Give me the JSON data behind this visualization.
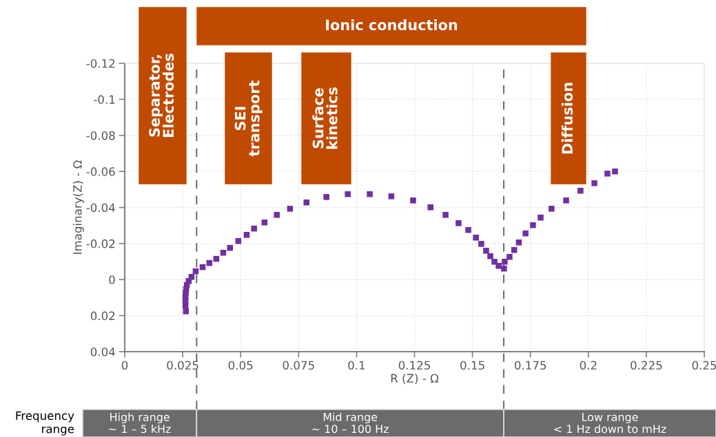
{
  "chart_data": {
    "type": "scatter",
    "xlabel": "R (Z) - Ω",
    "ylabel": "Imaginary(Z) - Ω",
    "x": [
      0.0264,
      0.0262,
      0.0262,
      0.0262,
      0.0263,
      0.0265,
      0.0268,
      0.0276,
      0.0288,
      0.0306,
      0.0336,
      0.0365,
      0.0395,
      0.0425,
      0.0454,
      0.049,
      0.0526,
      0.0558,
      0.0603,
      0.0656,
      0.0713,
      0.0784,
      0.087,
      0.0962,
      0.1057,
      0.115,
      0.1244,
      0.1319,
      0.1384,
      0.144,
      0.1482,
      0.1515,
      0.1538,
      0.1559,
      0.1577,
      0.1595,
      0.1613,
      0.1636,
      0.1639,
      0.166,
      0.168,
      0.17,
      0.1729,
      0.1761,
      0.1794,
      0.1841,
      0.1904,
      0.1966,
      0.2026,
      0.2082,
      0.2115
    ],
    "series": [
      {
        "color": "#7030a0",
        "values": [
          0.0176,
          0.0145,
          0.012,
          0.0095,
          0.0073,
          0.0053,
          0.003,
          0.0008,
          -0.0015,
          -0.0046,
          -0.0069,
          -0.0092,
          -0.0115,
          -0.0149,
          -0.0176,
          -0.0214,
          -0.0248,
          -0.0283,
          -0.0317,
          -0.0359,
          -0.0393,
          -0.0428,
          -0.0458,
          -0.0474,
          -0.0474,
          -0.0462,
          -0.0439,
          -0.0401,
          -0.0359,
          -0.0313,
          -0.0275,
          -0.0233,
          -0.0198,
          -0.016,
          -0.013,
          -0.0099,
          -0.0076,
          -0.0061,
          -0.0099,
          -0.0126,
          -0.0164,
          -0.0206,
          -0.0256,
          -0.0302,
          -0.0344,
          -0.0393,
          -0.0439,
          -0.0493,
          -0.0535,
          -0.0588,
          -0.06
        ]
      }
    ],
    "marker": "square",
    "xlim": [
      0,
      0.25
    ],
    "xticks": [
      0,
      0.025,
      0.05,
      0.075,
      0.1,
      0.125,
      0.15,
      0.175,
      0.2,
      0.225,
      0.25
    ],
    "ylim": [
      0.04,
      -0.12
    ],
    "yticks": [
      -0.12,
      -0.1,
      -0.08,
      -0.06,
      -0.04,
      -0.02,
      0,
      0.02,
      0.04
    ],
    "grid": true,
    "ref_lines": [
      {
        "axis": "x",
        "value": 0.031,
        "color": "#707070",
        "line_style": "dashed"
      },
      {
        "axis": "x",
        "value": 0.1635,
        "color": "#707070",
        "line_style": "dashed"
      }
    ],
    "annotations": [
      "Ionic conduction",
      "Separator,\nElectrodes",
      "SEI\ntransport",
      "Surface\nkinetics",
      "Diffusion",
      "Frequency\nrange",
      "High range\n~ 1 – 5 kHz",
      "Mid range\n~ 10 – 100 Hz",
      "Low range\n< 1 Hz down to mHz"
    ]
  }
}
